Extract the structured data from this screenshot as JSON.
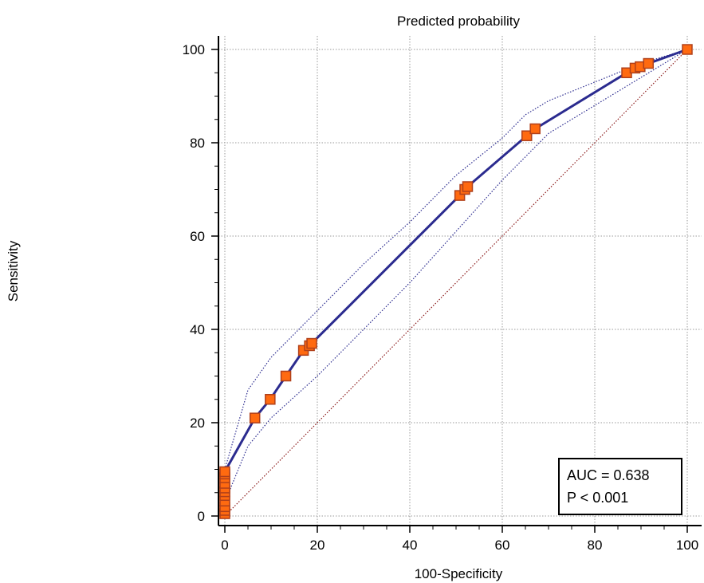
{
  "chart_data": {
    "type": "line",
    "title": "Predicted probability",
    "xlabel": "100-Specificity",
    "ylabel": "Sensitivity",
    "xlim": [
      0,
      100
    ],
    "ylim": [
      0,
      100
    ],
    "xticks": [
      0,
      20,
      40,
      60,
      80,
      100
    ],
    "yticks": [
      0,
      20,
      40,
      60,
      80,
      100
    ],
    "grid": true,
    "colors": {
      "roc": "#2b2b8f",
      "ci": "#2b2b8f",
      "diagonal": "#8b1a1a",
      "marker_fill": "#ff6a10",
      "marker_edge": "#b0401a"
    },
    "series": [
      {
        "x": [
          0,
          0,
          0,
          0,
          0,
          0,
          0,
          0,
          0,
          0,
          0,
          6.5,
          9.8,
          13.2,
          17.0,
          18.3,
          18.8,
          50.8,
          51.9,
          52.5,
          65.3,
          67.1,
          86.9,
          88.7,
          89.8,
          91.6,
          100
        ],
        "y": [
          0.5,
          1.2,
          2.0,
          3.2,
          4.4,
          5.2,
          6.0,
          7.0,
          8.2,
          9.0,
          9.5,
          21.0,
          25.0,
          30.0,
          35.5,
          36.5,
          37.0,
          68.7,
          70.0,
          70.6,
          81.5,
          83.0,
          95.0,
          96.0,
          96.3,
          97.0,
          100
        ]
      },
      {
        "x": [
          0,
          5,
          10,
          20,
          30,
          40,
          50,
          60,
          65,
          70,
          80,
          90,
          100
        ],
        "y": [
          10,
          27,
          34,
          44,
          54,
          63,
          73,
          81,
          86,
          89,
          93,
          97,
          100
        ]
      },
      {
        "x": [
          0,
          5,
          10,
          20,
          30,
          40,
          50,
          60,
          65,
          70,
          80,
          90,
          100
        ],
        "y": [
          3,
          15,
          21,
          30,
          40,
          50,
          61,
          72,
          77,
          82,
          88,
          94,
          100
        ]
      },
      {
        "x": [
          0,
          100
        ],
        "y": [
          0,
          100
        ]
      }
    ],
    "annotations": [
      "AUC = 0.638",
      "P < 0.001"
    ],
    "legend_position": "bottom-right"
  }
}
